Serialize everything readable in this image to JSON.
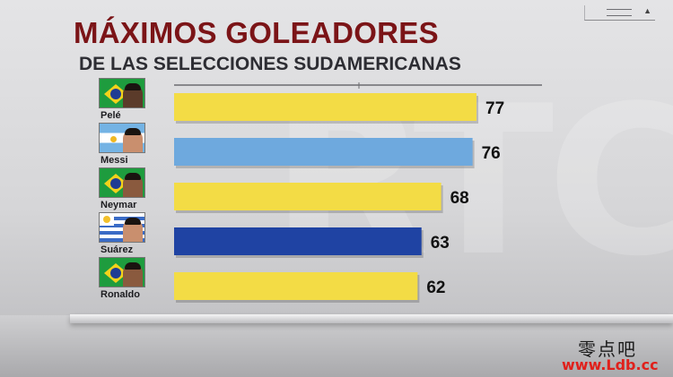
{
  "header": {
    "title": "MÁXIMOS GOLEADORES",
    "subtitle": "DE LAS SELECCIONES SUDAMERICANAS"
  },
  "players": [
    {
      "name": "Pelé",
      "flag": "brazil-flag",
      "face": "dark"
    },
    {
      "name": "Messi",
      "flag": "argentina-flag",
      "face": "light"
    },
    {
      "name": "Neymar",
      "flag": "brazil-flag",
      "face": "mid"
    },
    {
      "name": "Suárez",
      "flag": "uruguay-flag",
      "face": "light"
    },
    {
      "name": "Ronaldo",
      "flag": "brazil-flag",
      "face": "mid"
    }
  ],
  "chart_data": {
    "type": "bar",
    "orientation": "horizontal",
    "title": "MÁXIMOS GOLEADORES",
    "subtitle": "DE LAS SELECCIONES SUDAMERICANAS",
    "categories": [
      "Pelé",
      "Messi",
      "Neymar",
      "Suárez",
      "Ronaldo"
    ],
    "values": [
      77,
      76,
      68,
      63,
      62
    ],
    "value_labels": [
      "77",
      "76",
      "68",
      "63",
      "62"
    ],
    "bar_colors": [
      "#f3dc45",
      "#6ea9de",
      "#f3dc45",
      "#1f43a3",
      "#f3dc45"
    ],
    "xlim": [
      0,
      77
    ],
    "grid": false,
    "legend": "none"
  },
  "watermark": {
    "cn": "零点吧",
    "url": "www.Ldb.cc"
  }
}
